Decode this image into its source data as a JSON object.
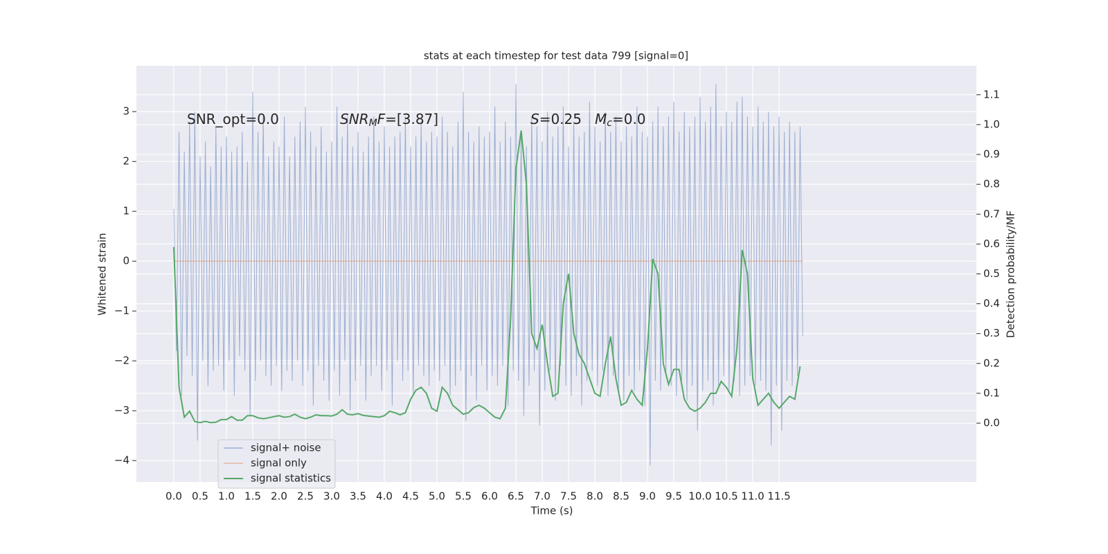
{
  "chart_data": {
    "type": "line",
    "title": "stats at each timestep for test data 799 [signal=0]",
    "xlabel": "Time (s)",
    "ylabel": "Whitened strain",
    "y2label": "Detection probability/MF",
    "annotations": [
      [
        "SNR_opt=0.0"
      ],
      [
        "SNR",
        "M",
        "F",
        "=[3.87]"
      ],
      [
        "S",
        "=0.25"
      ],
      [
        "M",
        "c",
        "=0.0"
      ]
    ],
    "xlim": [
      -0.71,
      15.25
    ],
    "xticks": [
      {
        "value": 0,
        "label": "0.0"
      },
      0.5,
      {
        "value": 1,
        "label": "1.0"
      },
      1.5,
      {
        "value": 2,
        "label": "2.0"
      },
      2.5,
      {
        "value": 3,
        "label": "3.0"
      },
      3.5,
      {
        "value": 4,
        "label": "4.0"
      },
      4.5,
      {
        "value": 5,
        "label": "5.0"
      },
      5.5,
      {
        "value": 6,
        "label": "6.0"
      },
      6.5,
      {
        "value": 7,
        "label": "7.0"
      },
      7.5,
      {
        "value": 8,
        "label": "8.0"
      },
      8.5,
      {
        "value": 9,
        "label": "9.0"
      },
      9.5,
      {
        "value": 10,
        "label": "10.0"
      },
      10.5,
      {
        "value": 11,
        "label": "11.0"
      },
      11.5
    ],
    "ylim": [
      -4.43,
      3.92
    ],
    "yticks": [
      {
        "value": -4,
        "label": "−4"
      },
      {
        "value": -3,
        "label": "−3"
      },
      {
        "value": -2,
        "label": "−2"
      },
      {
        "value": -1,
        "label": "−1"
      },
      0,
      1,
      2,
      3
    ],
    "y2lim": [
      -0.197,
      1.197
    ],
    "y2ticks": [
      {
        "value": 0,
        "label": "0.0"
      },
      0.1,
      0.2,
      0.3,
      0.4,
      0.5,
      0.6,
      0.7,
      0.8,
      0.9,
      {
        "value": 1,
        "label": "1.0"
      },
      1.1
    ],
    "grid": true,
    "legend": "lower left",
    "series": [
      {
        "name": "signal+ noise",
        "color": "#4c72b0",
        "x": [
          0,
          0.05,
          0.1,
          0.15,
          0.2,
          0.25,
          0.3,
          0.35,
          0.4,
          0.45,
          0.5,
          0.55,
          0.6,
          0.65,
          0.7,
          0.75,
          0.8,
          0.85,
          0.9,
          0.95,
          1,
          1.05,
          1.1,
          1.15,
          1.2,
          1.25,
          1.3,
          1.35,
          1.4,
          1.45,
          1.5,
          1.55,
          1.6,
          1.65,
          1.7,
          1.75,
          1.8,
          1.85,
          1.9,
          1.95,
          2,
          2.05,
          2.1,
          2.15,
          2.2,
          2.25,
          2.3,
          2.35,
          2.4,
          2.45,
          2.5,
          2.55,
          2.6,
          2.65,
          2.7,
          2.75,
          2.8,
          2.85,
          2.9,
          2.95,
          3,
          3.05,
          3.1,
          3.15,
          3.2,
          3.25,
          3.3,
          3.35,
          3.4,
          3.45,
          3.5,
          3.55,
          3.6,
          3.65,
          3.7,
          3.75,
          3.8,
          3.85,
          3.9,
          3.95,
          4,
          4.05,
          4.1,
          4.15,
          4.2,
          4.25,
          4.3,
          4.35,
          4.4,
          4.45,
          4.5,
          4.55,
          4.6,
          4.65,
          4.7,
          4.75,
          4.8,
          4.85,
          4.9,
          4.95,
          5,
          5.05,
          5.1,
          5.15,
          5.2,
          5.25,
          5.3,
          5.35,
          5.4,
          5.45,
          5.5,
          5.55,
          5.6,
          5.65,
          5.7,
          5.75,
          5.8,
          5.85,
          5.9,
          5.95,
          6,
          6.05,
          6.1,
          6.15,
          6.2,
          6.25,
          6.3,
          6.35,
          6.4,
          6.45,
          6.5,
          6.55,
          6.6,
          6.65,
          6.7,
          6.75,
          6.8,
          6.85,
          6.9,
          6.95,
          7,
          7.05,
          7.1,
          7.15,
          7.2,
          7.25,
          7.3,
          7.35,
          7.4,
          7.45,
          7.5,
          7.55,
          7.6,
          7.65,
          7.7,
          7.75,
          7.8,
          7.85,
          7.9,
          7.95,
          8,
          8.05,
          8.1,
          8.15,
          8.2,
          8.25,
          8.3,
          8.35,
          8.4,
          8.45,
          8.5,
          8.55,
          8.6,
          8.65,
          8.7,
          8.75,
          8.8,
          8.85,
          8.9,
          8.95,
          9,
          9.05,
          9.1,
          9.15,
          9.2,
          9.25,
          9.3,
          9.35,
          9.4,
          9.45,
          9.5,
          9.55,
          9.6,
          9.65,
          9.7,
          9.75,
          9.8,
          9.85,
          9.9,
          9.95,
          10,
          10.05,
          10.1,
          10.15,
          10.2,
          10.25,
          10.3,
          10.35,
          10.4,
          10.45,
          10.5,
          10.55,
          10.6,
          10.65,
          10.7,
          10.75,
          10.8,
          10.85,
          10.9,
          10.95,
          11,
          11.05,
          11.1,
          11.15,
          11.2,
          11.25,
          11.3,
          11.35,
          11.4,
          11.45,
          11.5,
          11.55,
          11.6,
          11.65,
          11.7,
          11.75,
          11.8,
          11.85,
          11.9,
          11.95
        ],
        "values": [
          1.05,
          -1.8,
          2.6,
          -2.7,
          2.2,
          -1.9,
          2.8,
          -2.3,
          3.0,
          -3.6,
          2.1,
          -2.0,
          2.4,
          -2.5,
          1.9,
          -2.2,
          2.7,
          -2.1,
          2.3,
          -2.6,
          2.5,
          -2.0,
          2.2,
          -2.7,
          2.3,
          -1.9,
          2.6,
          -2.2,
          2.0,
          -3.1,
          3.4,
          -2.4,
          2.6,
          -2.0,
          2.9,
          -2.3,
          2.1,
          -2.5,
          2.4,
          -2.1,
          2.3,
          -2.6,
          2.9,
          -2.2,
          2.1,
          -2.4,
          2.5,
          -2.0,
          2.8,
          -2.5,
          3.1,
          -2.2,
          2.6,
          -2.9,
          2.3,
          -2.1,
          2.7,
          -2.4,
          2.2,
          -2.8,
          2.4,
          -2.2,
          3.1,
          -2.7,
          2.5,
          -2.0,
          2.9,
          -3.0,
          2.3,
          -2.4,
          2.6,
          -2.1,
          2.2,
          -2.8,
          2.5,
          -2.3,
          2.9,
          -2.1,
          2.4,
          -2.6,
          2.7,
          -2.2,
          2.3,
          -2.9,
          2.5,
          -2.0,
          2.6,
          -2.4,
          2.9,
          -2.2,
          2.3,
          -2.7,
          2.5,
          -2.1,
          2.8,
          -2.3,
          2.4,
          -2.5,
          2.6,
          -2.2,
          2.5,
          -2.4,
          2.9,
          -2.1,
          2.6,
          -2.7,
          2.3,
          -2.5,
          2.8,
          -2.2,
          3.4,
          -3.2,
          2.6,
          -2.3,
          2.4,
          -2.8,
          2.7,
          -2.1,
          2.5,
          -2.6,
          2.6,
          -2.3,
          3.1,
          -2.5,
          2.4,
          -2.1,
          2.8,
          -2.9,
          2.5,
          -2.2,
          3.55,
          -2.4,
          2.6,
          -3.1,
          2.3,
          -2.5,
          2.9,
          -2.2,
          2.7,
          -3.3,
          2.4,
          -2.6,
          3.0,
          -2.2,
          2.5,
          -2.8,
          2.7,
          -2.1,
          3.1,
          -2.5,
          2.3,
          -2.7,
          2.8,
          -2.3,
          2.5,
          -2.9,
          2.6,
          -2.4,
          3.2,
          -2.2,
          2.7,
          -2.5,
          2.4,
          -2.2,
          3.0,
          -2.7,
          2.6,
          -2.3,
          2.9,
          -2.6,
          2.4,
          -2.8,
          2.7,
          -2.3,
          2.5,
          -2.6,
          3.1,
          -2.2,
          2.6,
          -2.9,
          2.5,
          -4.1,
          2.8,
          -2.4,
          3.1,
          -2.6,
          2.7,
          -2.3,
          2.9,
          -2.5,
          3.2,
          -2.7,
          2.6,
          -2.4,
          3.0,
          -2.8,
          2.7,
          -2.5,
          2.9,
          -3.4,
          3.3,
          -2.6,
          2.8,
          -2.4,
          3.1,
          -2.9,
          3.55,
          -2.5,
          2.7,
          -2.3,
          3.0,
          -2.6,
          2.8,
          -2.4,
          3.2,
          -2.7,
          3.3,
          -2.5,
          2.9,
          -2.3,
          2.7,
          -2.5,
          3.1,
          -2.4,
          2.8,
          -2.6,
          3.0,
          -3.7,
          2.7,
          -2.5,
          2.9,
          -3.4,
          2.6,
          -2.4,
          2.8,
          -2.5,
          2.6,
          -2.3,
          2.7,
          -1.5
        ]
      },
      {
        "name": "signal only",
        "color": "#dd8452",
        "x": [
          0,
          11.95
        ],
        "values": [
          0,
          0
        ]
      },
      {
        "name": "signal statistics",
        "color": "#55a868",
        "axis": "y2",
        "x": [
          0,
          0.1,
          0.2,
          0.3,
          0.4,
          0.5,
          0.6,
          0.7,
          0.8,
          0.9,
          1,
          1.1,
          1.2,
          1.3,
          1.4,
          1.5,
          1.6,
          1.7,
          1.8,
          1.9,
          2,
          2.1,
          2.2,
          2.3,
          2.4,
          2.5,
          2.6,
          2.7,
          2.8,
          2.9,
          3,
          3.1,
          3.2,
          3.3,
          3.4,
          3.5,
          3.6,
          3.7,
          3.8,
          3.9,
          4,
          4.1,
          4.2,
          4.3,
          4.4,
          4.5,
          4.6,
          4.7,
          4.8,
          4.9,
          5,
          5.1,
          5.2,
          5.3,
          5.4,
          5.5,
          5.6,
          5.7,
          5.8,
          5.9,
          6,
          6.1,
          6.2,
          6.3,
          6.4,
          6.5,
          6.6,
          6.7,
          6.8,
          6.9,
          7,
          7.1,
          7.2,
          7.3,
          7.4,
          7.5,
          7.6,
          7.7,
          7.8,
          7.9,
          8,
          8.1,
          8.2,
          8.3,
          8.4,
          8.5,
          8.6,
          8.7,
          8.8,
          8.9,
          9,
          9.1,
          9.2,
          9.3,
          9.4,
          9.5,
          9.6,
          9.7,
          9.8,
          9.9,
          10,
          10.1,
          10.2,
          10.3,
          10.4,
          10.5,
          10.6,
          10.7,
          10.8,
          10.9,
          11,
          11.1,
          11.2,
          11.3,
          11.4,
          11.5,
          11.6,
          11.7,
          11.8,
          11.9
        ],
        "values": [
          0.59,
          0.12,
          0.02,
          0.04,
          0.005,
          0.002,
          0.006,
          0.002,
          0.003,
          0.012,
          0.012,
          0.022,
          0.01,
          0.01,
          0.025,
          0.025,
          0.018,
          0.015,
          0.018,
          0.022,
          0.025,
          0.02,
          0.022,
          0.03,
          0.02,
          0.015,
          0.02,
          0.028,
          0.025,
          0.025,
          0.024,
          0.03,
          0.045,
          0.03,
          0.028,
          0.032,
          0.026,
          0.024,
          0.022,
          0.02,
          0.025,
          0.04,
          0.035,
          0.028,
          0.035,
          0.08,
          0.11,
          0.12,
          0.1,
          0.05,
          0.04,
          0.12,
          0.1,
          0.06,
          0.045,
          0.03,
          0.035,
          0.052,
          0.06,
          0.05,
          0.035,
          0.02,
          0.015,
          0.05,
          0.35,
          0.85,
          0.98,
          0.8,
          0.3,
          0.25,
          0.33,
          0.2,
          0.09,
          0.1,
          0.4,
          0.5,
          0.3,
          0.23,
          0.2,
          0.15,
          0.1,
          0.09,
          0.2,
          0.29,
          0.15,
          0.06,
          0.07,
          0.11,
          0.08,
          0.06,
          0.25,
          0.55,
          0.5,
          0.2,
          0.13,
          0.18,
          0.18,
          0.08,
          0.05,
          0.04,
          0.05,
          0.07,
          0.1,
          0.1,
          0.14,
          0.12,
          0.09,
          0.25,
          0.58,
          0.5,
          0.15,
          0.06,
          0.08,
          0.1,
          0.07,
          0.05,
          0.07,
          0.09,
          0.08,
          0.19
        ]
      }
    ]
  }
}
